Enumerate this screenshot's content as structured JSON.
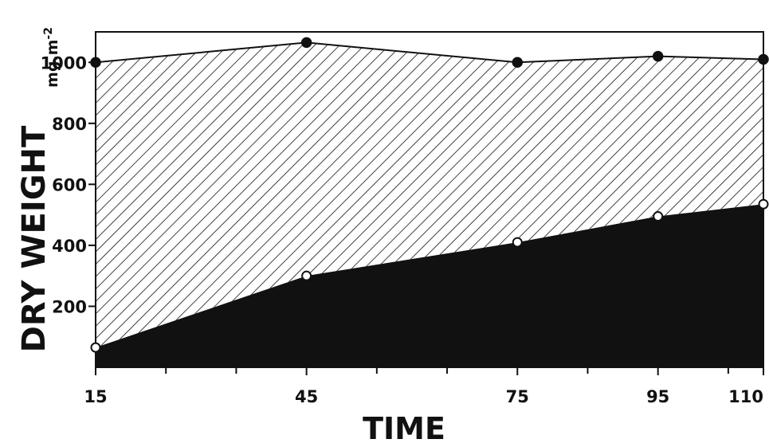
{
  "chart_data": {
    "type": "area",
    "title": "",
    "xlabel": "TIME",
    "ylabel": "DRY WEIGHT",
    "yunit": "mg.m",
    "yunit_exp": "-2",
    "x": [
      15,
      45,
      75,
      95,
      110
    ],
    "xlim": [
      15,
      110
    ],
    "ylim": [
      0,
      1100
    ],
    "xticks": [
      15,
      45,
      75,
      95,
      110
    ],
    "yticks": [
      200,
      400,
      600,
      800,
      1000
    ],
    "xtick_labels": [
      "15",
      "45",
      "75",
      "95",
      "110"
    ],
    "ytick_labels": [
      "200",
      "400",
      "600",
      "800",
      "1000"
    ],
    "minor_xticks": [
      25,
      35,
      55,
      65,
      85,
      105
    ],
    "grid": false,
    "series": [
      {
        "values": [
          1000,
          1065,
          1000,
          1020,
          1010
        ],
        "marker": "filled-circle",
        "fill": "hatched"
      },
      {
        "values": [
          65,
          300,
          410,
          495,
          535
        ],
        "marker": "open-circle",
        "fill": "solid-black"
      }
    ],
    "colors": {
      "ink": "#111111",
      "background": "#ffffff"
    }
  }
}
